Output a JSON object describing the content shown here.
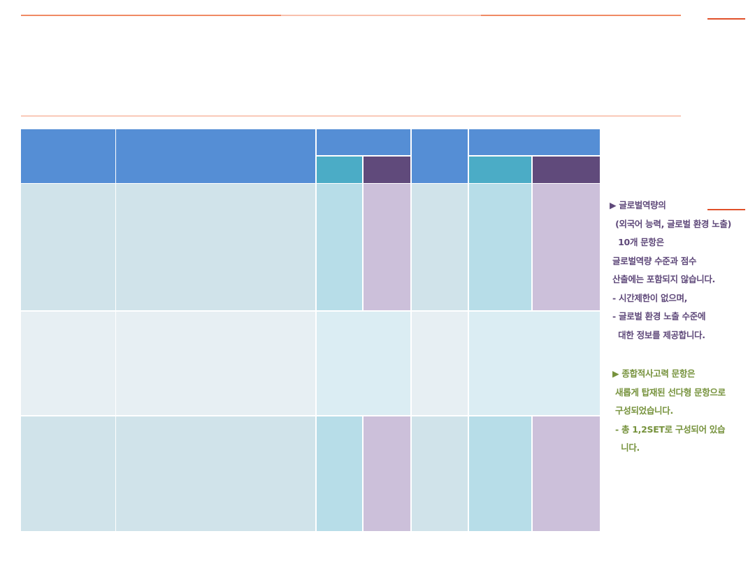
{
  "colors": {
    "accent": "#f08a64",
    "header": "#558ed5",
    "teal": "#4bacc6",
    "purple": "#604a7b",
    "note_purple": "#5f497a",
    "note_green": "#76923c"
  },
  "notes": {
    "global": [
      "▶ 글로벌역량의",
      "  (외국어 능력, 글로벌 환경 노출)",
      "   10개 문항은",
      " 글로벌역량 수준과 점수",
      " 산출에는 포함되지 않습니다.",
      " - 시간제한이 없으며,",
      " - 글로벌 환경 노출 수준에",
      "   대한 정보를 제공합니다."
    ],
    "integrated": [
      "▶ 종합적사고력 문항은",
      " 새롭게 탑재된 선다형 문항으로",
      " 구성되었습니다.",
      " - 총 1,2SET로 구성되어 있습",
      "   니다."
    ]
  }
}
